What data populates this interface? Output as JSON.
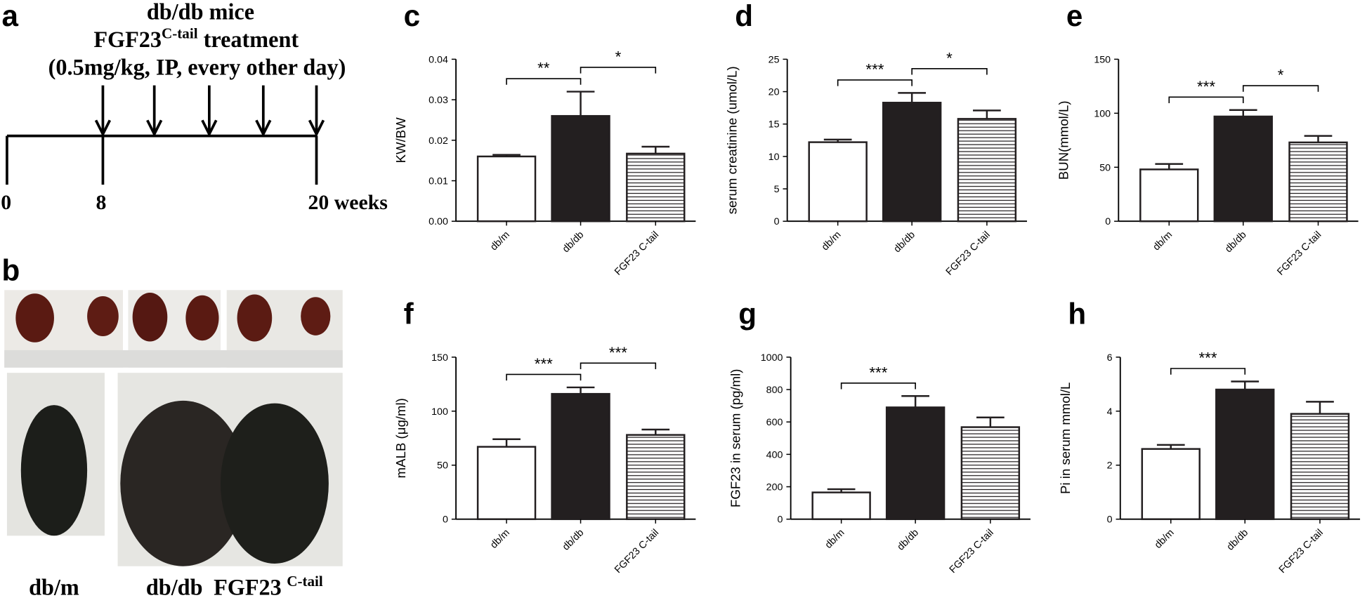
{
  "timeline": {
    "panel": "a",
    "line1": "db/db mice",
    "treatment_name": "FGF23",
    "treatment_sup": "C-tail",
    "treatment_suffix": " treatment",
    "line3": "(0.5mg/kg, IP, every other day)",
    "labels": [
      "0",
      "8",
      "20 weeks"
    ]
  },
  "photos": {
    "panel": "b",
    "labels": [
      "db/m",
      "db/db"
    ],
    "label3_name": "FGF23",
    "label3_sup": "C-tail"
  },
  "chart_data": [
    {
      "type": "bar",
      "panel": "c",
      "ylabel": "KW/BW",
      "categories": [
        "db/m",
        "db/db",
        "FGF23 C-tail"
      ],
      "values": [
        0.016,
        0.026,
        0.0167
      ],
      "errors": [
        0.0004,
        0.006,
        0.0017
      ],
      "bar_styles": [
        "open",
        "filled",
        "striped"
      ],
      "ylim": [
        0,
        0.04
      ],
      "yticks": [
        {
          "value": 0,
          "label": "0.00"
        },
        {
          "value": 0.01,
          "label": "0.01"
        },
        {
          "value": 0.02,
          "label": "0.02"
        },
        {
          "value": 0.03,
          "label": "0.03"
        },
        {
          "value": 0.04,
          "label": "0.04"
        }
      ],
      "significance": [
        {
          "from": 0,
          "to": 1,
          "label": "**"
        },
        {
          "from": 1,
          "to": 2,
          "label": "*"
        }
      ]
    },
    {
      "type": "bar",
      "panel": "d",
      "ylabel": "serum creatinine (umol/L)",
      "categories": [
        "db/m",
        "db/db",
        "FGF23 C-tail"
      ],
      "values": [
        12.2,
        18.3,
        15.8
      ],
      "errors": [
        0.4,
        1.5,
        1.3
      ],
      "bar_styles": [
        "open",
        "filled",
        "striped"
      ],
      "ylim": [
        0,
        25
      ],
      "yticks": [
        0,
        5,
        10,
        15,
        20,
        25
      ],
      "significance": [
        {
          "from": 0,
          "to": 1,
          "label": "***"
        },
        {
          "from": 1,
          "to": 2,
          "label": "*"
        }
      ]
    },
    {
      "type": "bar",
      "panel": "e",
      "ylabel": "BUN(mmol/L)",
      "categories": [
        "db/m",
        "db/db",
        "FGF23 C-tail"
      ],
      "values": [
        48,
        97,
        73
      ],
      "errors": [
        5,
        6,
        6
      ],
      "bar_styles": [
        "open",
        "filled",
        "striped"
      ],
      "ylim": [
        0,
        150
      ],
      "yticks": [
        0,
        50,
        100,
        150
      ],
      "significance": [
        {
          "from": 0,
          "to": 1,
          "label": "***"
        },
        {
          "from": 1,
          "to": 2,
          "label": "*"
        }
      ]
    },
    {
      "type": "bar",
      "panel": "f",
      "ylabel": "mALB (μg/ml)",
      "categories": [
        "db/m",
        "db/db",
        "FGF23 C-tail"
      ],
      "values": [
        67,
        116,
        78
      ],
      "errors": [
        7,
        6,
        5
      ],
      "bar_styles": [
        "open",
        "filled",
        "striped"
      ],
      "ylim": [
        0,
        150
      ],
      "yticks": [
        0,
        50,
        100,
        150
      ],
      "significance": [
        {
          "from": 0,
          "to": 1,
          "label": "***"
        },
        {
          "from": 1,
          "to": 2,
          "label": "***"
        }
      ]
    },
    {
      "type": "bar",
      "panel": "g",
      "ylabel": "FGF23 in serum (pg/ml)",
      "categories": [
        "db/m",
        "db/db",
        "FGF23 C-tail"
      ],
      "values": [
        165,
        690,
        568
      ],
      "errors": [
        20,
        70,
        60
      ],
      "bar_styles": [
        "open",
        "filled",
        "striped"
      ],
      "ylim": [
        0,
        1000
      ],
      "yticks": [
        0,
        200,
        400,
        600,
        800,
        1000
      ],
      "significance": [
        {
          "from": 0,
          "to": 1,
          "label": "***"
        }
      ]
    },
    {
      "type": "bar",
      "panel": "h",
      "ylabel": "Pi in serum mmol/L",
      "categories": [
        "db/m",
        "db/db",
        "FGF23 C-tail"
      ],
      "values": [
        2.6,
        4.8,
        3.9
      ],
      "errors": [
        0.15,
        0.3,
        0.45
      ],
      "bar_styles": [
        "open",
        "filled",
        "striped"
      ],
      "ylim": [
        0,
        6
      ],
      "yticks": [
        0,
        2,
        4,
        6
      ],
      "significance": [
        {
          "from": 0,
          "to": 1,
          "label": "***"
        }
      ]
    }
  ]
}
